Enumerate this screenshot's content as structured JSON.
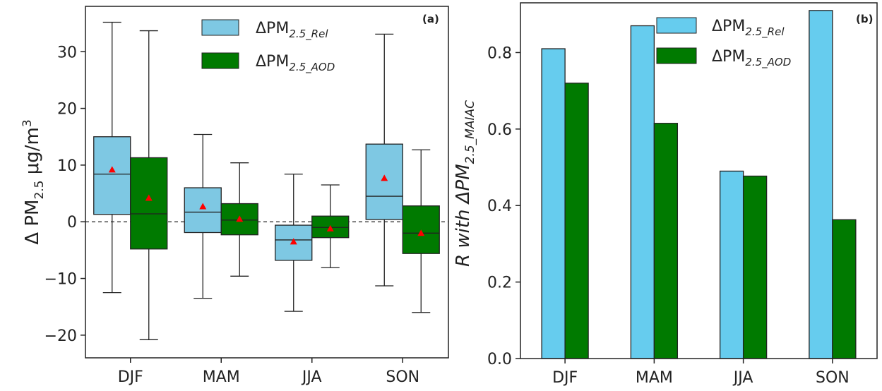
{
  "chart_data": [
    {
      "panel_label": "(a)",
      "type": "box",
      "categories": [
        "DJF",
        "MAM",
        "JJA",
        "SON"
      ],
      "ylabel": {
        "main": "Δ PM",
        "sub": "2.5",
        "unit_main": " μg/m",
        "unit_sup": "3"
      },
      "ylim": [
        -24,
        38
      ],
      "yticks": [
        -20,
        -10,
        0,
        10,
        20,
        30
      ],
      "ytick_labels": [
        "−20",
        "−10",
        "0",
        "10",
        "20",
        "30"
      ],
      "reference_line": {
        "y": 0,
        "style": "dashed"
      },
      "series": [
        {
          "name": {
            "main": "ΔPM",
            "sub": "2.5_Rel"
          },
          "color": "#7ec8e3",
          "boxes": [
            {
              "whisker_low": -12.5,
              "q1": 1.3,
              "median": 8.4,
              "q3": 15.0,
              "whisker_high": 35.2,
              "mean": 9.2
            },
            {
              "whisker_low": -13.5,
              "q1": -1.9,
              "median": 1.7,
              "q3": 6.0,
              "whisker_high": 15.4,
              "mean": 2.7
            },
            {
              "whisker_low": -15.8,
              "q1": -6.8,
              "median": -3.2,
              "q3": -0.6,
              "whisker_high": 8.4,
              "mean": -3.5
            },
            {
              "whisker_low": -11.3,
              "q1": 0.4,
              "median": 4.5,
              "q3": 13.7,
              "whisker_high": 33.1,
              "mean": 7.7
            }
          ]
        },
        {
          "name": {
            "main": "ΔPM",
            "sub": "2.5_AOD"
          },
          "color": "#007a00",
          "boxes": [
            {
              "whisker_low": -20.8,
              "q1": -4.8,
              "median": 1.4,
              "q3": 11.3,
              "whisker_high": 33.7,
              "mean": 4.2
            },
            {
              "whisker_low": -9.6,
              "q1": -2.3,
              "median": 0.3,
              "q3": 3.2,
              "whisker_high": 10.4,
              "mean": 0.5
            },
            {
              "whisker_low": -8.1,
              "q1": -2.8,
              "median": -1.0,
              "q3": 1.0,
              "whisker_high": 6.5,
              "mean": -1.2
            },
            {
              "whisker_low": -16.0,
              "q1": -5.6,
              "median": -2.0,
              "q3": 2.8,
              "whisker_high": 12.7,
              "mean": -2.0
            }
          ]
        }
      ]
    },
    {
      "panel_label": "(b)",
      "type": "bar",
      "categories": [
        "DJF",
        "MAM",
        "JJA",
        "SON"
      ],
      "ylabel": {
        "main": "R with ΔPM",
        "sub": "2.5_MAIAC"
      },
      "ylim": [
        0,
        0.93
      ],
      "yticks": [
        0,
        0.2,
        0.4,
        0.6,
        0.8
      ],
      "ytick_labels": [
        "0.0",
        "0.2",
        "0.4",
        "0.6",
        "0.8"
      ],
      "series": [
        {
          "name": {
            "main": "ΔPM",
            "sub": "2.5_Rel"
          },
          "color": "#66ccee",
          "values": [
            0.81,
            0.87,
            0.49,
            0.91
          ]
        },
        {
          "name": {
            "main": "ΔPM",
            "sub": "2.5_AOD"
          },
          "color": "#007a00",
          "values": [
            0.72,
            0.615,
            0.477,
            0.363
          ]
        }
      ]
    }
  ]
}
